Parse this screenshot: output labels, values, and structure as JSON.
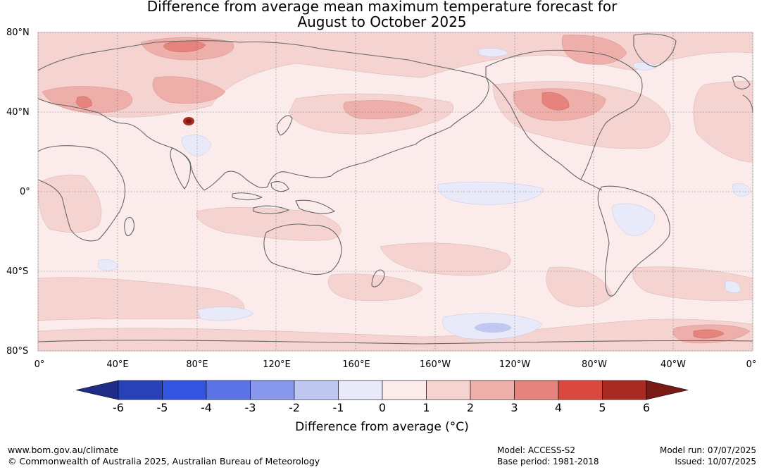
{
  "title_line1": "Difference from average mean maximum temperature forecast for",
  "title_line2": "August to October 2025",
  "lat_labels": [
    "80°N",
    "40°N",
    "0°",
    "40°S",
    "80°S"
  ],
  "lon_labels": [
    "0°",
    "40°E",
    "80°E",
    "120°E",
    "160°E",
    "160°W",
    "120°W",
    "80°W",
    "40°W",
    "0°"
  ],
  "colorbar": {
    "ticks": [
      "-6",
      "-5",
      "-4",
      "-3",
      "-2",
      "-1",
      "0",
      "1",
      "2",
      "3",
      "4",
      "5",
      "6"
    ],
    "colors": [
      "#1f2c8a",
      "#2840b8",
      "#3354e0",
      "#5c73e6",
      "#8898ec",
      "#c0c8f2",
      "#e8eafa",
      "#fbeceb",
      "#f5d3d1",
      "#eeaea9",
      "#e5837c",
      "#d9483e",
      "#a82a22",
      "#7a1a15"
    ],
    "label": "Difference from average (°C)"
  },
  "footer": {
    "website": "www.bom.gov.au/climate",
    "copyright": "© Commonwealth of Australia 2025, Australian Bureau of Meteorology",
    "model": "Model: ACCESS-S2",
    "base_period": "Base period: 1981-2018",
    "model_run": "Model run: 07/07/2025",
    "issued": "Issued: 10/07/2025"
  },
  "map": {
    "background_color": "#fbeceb",
    "land_outline_color": "#666666",
    "grid": true
  }
}
